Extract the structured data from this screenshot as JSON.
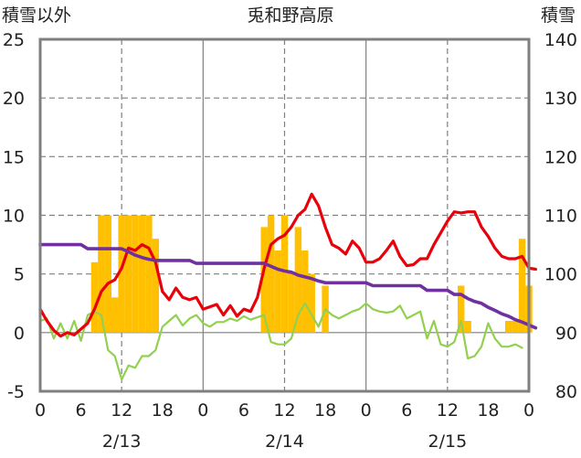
{
  "chart_data": {
    "type": "bar+line",
    "title": "兎和野高原",
    "left_axis_label": "積雪以外",
    "right_axis_label": "積雪",
    "left_ylim": [
      -5,
      25
    ],
    "right_ylim": [
      80,
      140
    ],
    "left_ticks": [
      "-5",
      "0",
      "5",
      "10",
      "15",
      "20",
      "25"
    ],
    "right_ticks": [
      "80",
      "90",
      "100",
      "110",
      "120",
      "130",
      "140"
    ],
    "x_ticks": [
      "0",
      "6",
      "12",
      "18",
      "0",
      "6",
      "12",
      "18",
      "0",
      "6",
      "12",
      "18",
      "0"
    ],
    "date_labels": [
      "2/13",
      "2/14",
      "2/15"
    ],
    "grid": true,
    "colors": {
      "bars": "#FFC000",
      "temperature": "#E8000B",
      "green_series": "#92D050",
      "snow_depth": "#7030A0"
    },
    "bars_hourly": [
      {
        "hour": 8,
        "value": 6
      },
      {
        "hour": 9,
        "value": 10
      },
      {
        "hour": 10,
        "value": 10
      },
      {
        "hour": 11,
        "value": 3
      },
      {
        "hour": 12,
        "value": 10
      },
      {
        "hour": 13,
        "value": 10
      },
      {
        "hour": 14,
        "value": 10
      },
      {
        "hour": 15,
        "value": 10
      },
      {
        "hour": 16,
        "value": 10
      },
      {
        "hour": 17,
        "value": 8
      },
      {
        "hour": 33,
        "value": 9
      },
      {
        "hour": 34,
        "value": 10
      },
      {
        "hour": 35,
        "value": 7
      },
      {
        "hour": 36,
        "value": 10
      },
      {
        "hour": 37,
        "value": 5
      },
      {
        "hour": 38,
        "value": 9
      },
      {
        "hour": 39,
        "value": 7
      },
      {
        "hour": 40,
        "value": 5
      },
      {
        "hour": 42,
        "value": 4
      },
      {
        "hour": 62,
        "value": 4
      },
      {
        "hour": 63,
        "value": 1
      },
      {
        "hour": 69,
        "value": 1
      },
      {
        "hour": 70,
        "value": 1
      },
      {
        "hour": 71,
        "value": 8
      },
      {
        "hour": 72,
        "value": 4
      }
    ],
    "series": [
      {
        "key": "red",
        "points": [
          [
            0,
            2
          ],
          [
            1,
            1
          ],
          [
            2,
            0.2
          ],
          [
            3,
            -0.3
          ],
          [
            4,
            0
          ],
          [
            5,
            -0.2
          ],
          [
            6,
            0.3
          ],
          [
            7,
            0.8
          ],
          [
            8,
            2
          ],
          [
            9,
            3.5
          ],
          [
            10,
            4.2
          ],
          [
            11,
            4.5
          ],
          [
            12,
            5.5
          ],
          [
            13,
            7.2
          ],
          [
            14,
            7
          ],
          [
            15,
            7.5
          ],
          [
            16,
            7.2
          ],
          [
            17,
            6
          ],
          [
            18,
            3.5
          ],
          [
            19,
            2.8
          ],
          [
            20,
            3.8
          ],
          [
            21,
            3
          ],
          [
            22,
            2.8
          ],
          [
            23,
            3
          ],
          [
            24,
            2
          ],
          [
            25,
            2.2
          ],
          [
            26,
            2.4
          ],
          [
            27,
            1.5
          ],
          [
            28,
            2.3
          ],
          [
            29,
            1.4
          ],
          [
            30,
            2
          ],
          [
            31,
            1.8
          ],
          [
            32,
            3
          ],
          [
            33,
            5.5
          ],
          [
            34,
            7.5
          ],
          [
            35,
            8
          ],
          [
            36,
            8.3
          ],
          [
            37,
            9
          ],
          [
            38,
            10
          ],
          [
            39,
            10.5
          ],
          [
            40,
            11.8
          ],
          [
            41,
            10.8
          ],
          [
            42,
            9
          ],
          [
            43,
            7.5
          ],
          [
            44,
            7.2
          ],
          [
            45,
            6.7
          ],
          [
            46,
            7.8
          ],
          [
            47,
            7.2
          ],
          [
            48,
            6
          ],
          [
            49,
            6
          ],
          [
            50,
            6.3
          ],
          [
            51,
            7
          ],
          [
            52,
            7.8
          ],
          [
            53,
            6.5
          ],
          [
            54,
            5.7
          ],
          [
            55,
            5.8
          ],
          [
            56,
            6.3
          ],
          [
            57,
            6.3
          ],
          [
            58,
            7.5
          ],
          [
            59,
            8.5
          ],
          [
            60,
            9.5
          ],
          [
            61,
            10.3
          ],
          [
            62,
            10.2
          ],
          [
            63,
            10.3
          ],
          [
            64,
            10.3
          ],
          [
            65,
            9
          ],
          [
            66,
            8.2
          ],
          [
            67,
            7.2
          ],
          [
            68,
            6.5
          ],
          [
            69,
            6.3
          ],
          [
            70,
            6.3
          ],
          [
            71,
            6.5
          ],
          [
            72,
            5.5
          ],
          [
            73,
            5.4
          ]
        ]
      },
      {
        "key": "green",
        "points": [
          [
            0,
            1
          ],
          [
            1,
            1.2
          ],
          [
            2,
            -0.5
          ],
          [
            3,
            0.8
          ],
          [
            4,
            -0.5
          ],
          [
            5,
            1
          ],
          [
            6,
            -0.7
          ],
          [
            7,
            1.5
          ],
          [
            8,
            1.8
          ],
          [
            9,
            1.5
          ],
          [
            10,
            -1.5
          ],
          [
            11,
            -2
          ],
          [
            12,
            -4
          ],
          [
            13,
            -2.8
          ],
          [
            14,
            -3
          ],
          [
            15,
            -2
          ],
          [
            16,
            -2
          ],
          [
            17,
            -1.5
          ],
          [
            18,
            0.5
          ],
          [
            19,
            1
          ],
          [
            20,
            1.5
          ],
          [
            21,
            0.6
          ],
          [
            22,
            1.2
          ],
          [
            23,
            1.5
          ],
          [
            24,
            0.8
          ],
          [
            25,
            0.5
          ],
          [
            26,
            0.9
          ],
          [
            27,
            0.9
          ],
          [
            28,
            1.2
          ],
          [
            29,
            1
          ],
          [
            30,
            1.4
          ],
          [
            31,
            1.1
          ],
          [
            32,
            1.3
          ],
          [
            33,
            1.5
          ],
          [
            34,
            -0.8
          ],
          [
            35,
            -1
          ],
          [
            36,
            -1
          ],
          [
            37,
            -0.5
          ],
          [
            38,
            1.5
          ],
          [
            39,
            2.5
          ],
          [
            40,
            1.5
          ],
          [
            41,
            0.5
          ],
          [
            42,
            2
          ],
          [
            43,
            1.5
          ],
          [
            44,
            1.2
          ],
          [
            45,
            1.5
          ],
          [
            46,
            1.8
          ],
          [
            47,
            2
          ],
          [
            48,
            2.5
          ],
          [
            49,
            2
          ],
          [
            50,
            1.8
          ],
          [
            51,
            1.7
          ],
          [
            52,
            1.8
          ],
          [
            53,
            2.3
          ],
          [
            54,
            1.2
          ],
          [
            55,
            1.5
          ],
          [
            56,
            1.8
          ],
          [
            57,
            -0.5
          ],
          [
            58,
            1
          ],
          [
            59,
            -1
          ],
          [
            60,
            -1.2
          ],
          [
            61,
            -0.8
          ],
          [
            62,
            1
          ],
          [
            63,
            -2.2
          ],
          [
            64,
            -2
          ],
          [
            65,
            -1.2
          ],
          [
            66,
            0.8
          ],
          [
            67,
            -0.5
          ],
          [
            68,
            -1.2
          ],
          [
            69,
            -1.2
          ],
          [
            70,
            -1
          ],
          [
            71,
            -1.3
          ]
        ]
      },
      {
        "key": "purple",
        "axis": "right",
        "points": [
          [
            0,
            105
          ],
          [
            6,
            105
          ],
          [
            7,
            104.3
          ],
          [
            12,
            104.3
          ],
          [
            13,
            103.8
          ],
          [
            14,
            103.2
          ],
          [
            15,
            102.8
          ],
          [
            16,
            102.5
          ],
          [
            17,
            102.3
          ],
          [
            22,
            102.3
          ],
          [
            23,
            101.8
          ],
          [
            33,
            101.8
          ],
          [
            34,
            101.3
          ],
          [
            35,
            100.8
          ],
          [
            36,
            100.5
          ],
          [
            37,
            100.3
          ],
          [
            38,
            99.8
          ],
          [
            39,
            99.5
          ],
          [
            40,
            99.2
          ],
          [
            41,
            98.8
          ],
          [
            42,
            98.5
          ],
          [
            48,
            98.5
          ],
          [
            49,
            98
          ],
          [
            56,
            98
          ],
          [
            57,
            97.2
          ],
          [
            60,
            97.2
          ],
          [
            61,
            96.5
          ],
          [
            62,
            96.5
          ],
          [
            63,
            95.8
          ],
          [
            64,
            95.3
          ],
          [
            65,
            95
          ],
          [
            66,
            94.3
          ],
          [
            67,
            93.8
          ],
          [
            68,
            93.2
          ],
          [
            69,
            92.8
          ],
          [
            70,
            92.2
          ],
          [
            71,
            91.8
          ],
          [
            72,
            91.3
          ],
          [
            73,
            90.8
          ]
        ]
      }
    ]
  }
}
